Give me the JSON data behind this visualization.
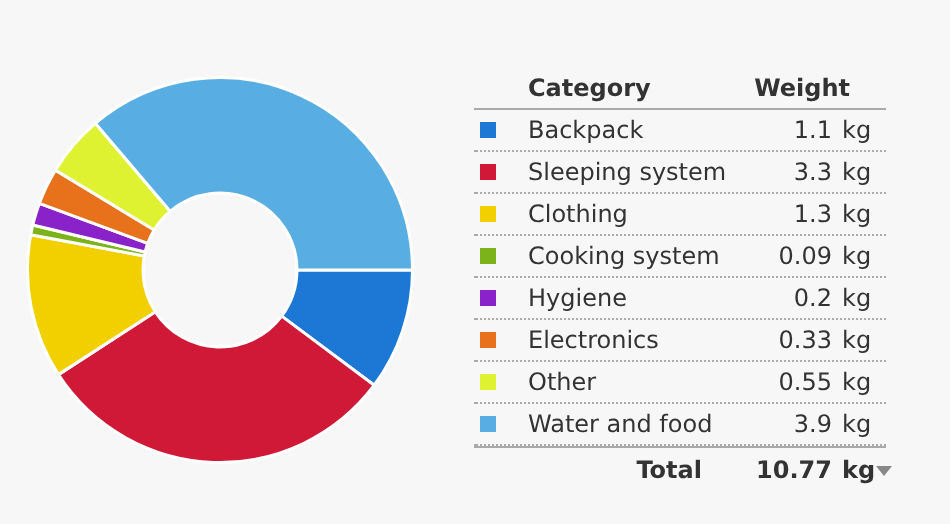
{
  "chart_data": {
    "type": "donut",
    "categories": [
      "Backpack",
      "Sleeping system",
      "Clothing",
      "Cooking system",
      "Hygiene",
      "Electronics",
      "Other",
      "Water and food"
    ],
    "values": [
      1.1,
      3.3,
      1.3,
      0.09,
      0.2,
      0.33,
      0.55,
      3.9
    ],
    "colors": [
      "#1c78d4",
      "#d01937",
      "#f2d000",
      "#7db31a",
      "#8a22c9",
      "#e8721c",
      "#dff232",
      "#58aee2"
    ],
    "data_labels": true,
    "legend": "right",
    "annotations": [
      "Category",
      "Weight",
      "kg",
      "Total",
      "10.77"
    ]
  }
}
